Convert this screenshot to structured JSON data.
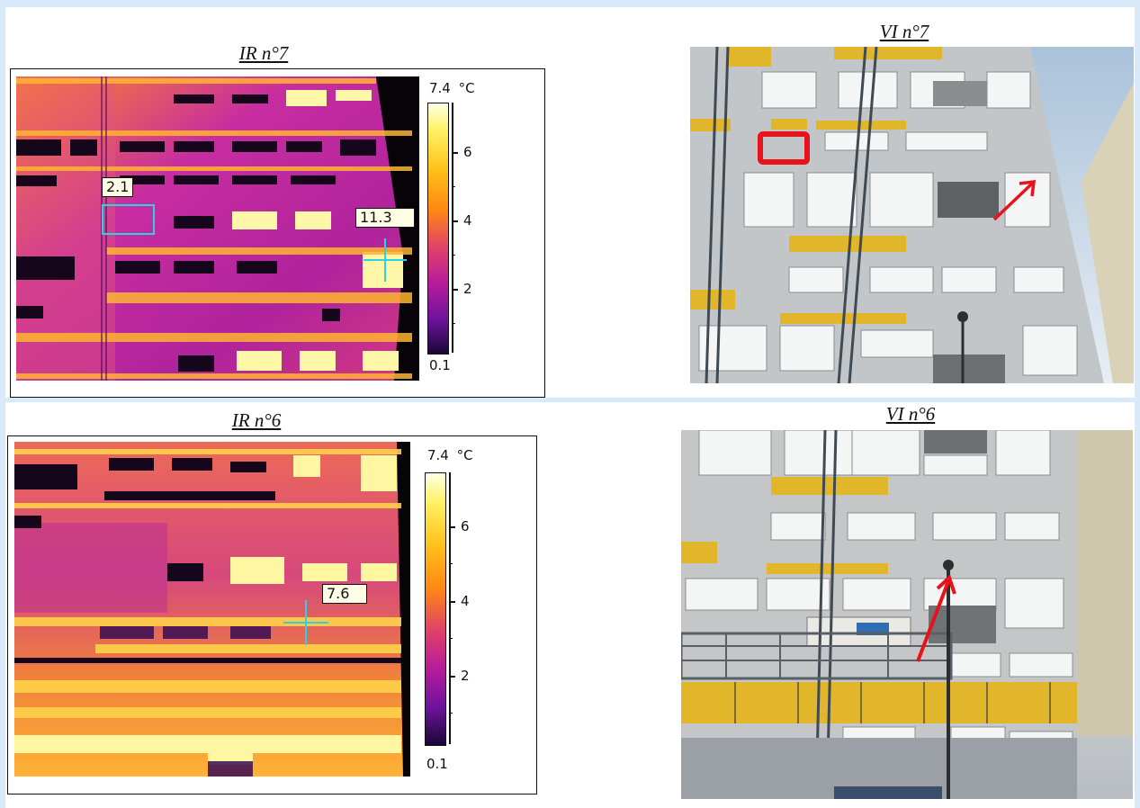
{
  "top": {
    "ir_caption": "IR n°7",
    "vi_caption": "VI n°7",
    "scale_max": "7.4",
    "scale_unit": "°C",
    "scale_min": "0.1",
    "ticks": [
      "6",
      "4",
      "2"
    ],
    "spot_box_value": "2.1",
    "spot_cross_value": "11.3"
  },
  "bottom": {
    "ir_caption": "IR n°6",
    "vi_caption": "VI n°6",
    "scale_max": "7.4",
    "scale_unit": "°C",
    "scale_min": "0.1",
    "ticks": [
      "6",
      "4",
      "2"
    ],
    "spot_cross_value": "7.6"
  },
  "colors": {
    "background": "#d7e9fb",
    "marker_red": "#e8121a",
    "cursor_cyan": "#29d3e6"
  },
  "icons": {
    "cursor": "crosshair-icon",
    "annotation": "arrow-icon",
    "area": "rectangle-marker-icon"
  }
}
